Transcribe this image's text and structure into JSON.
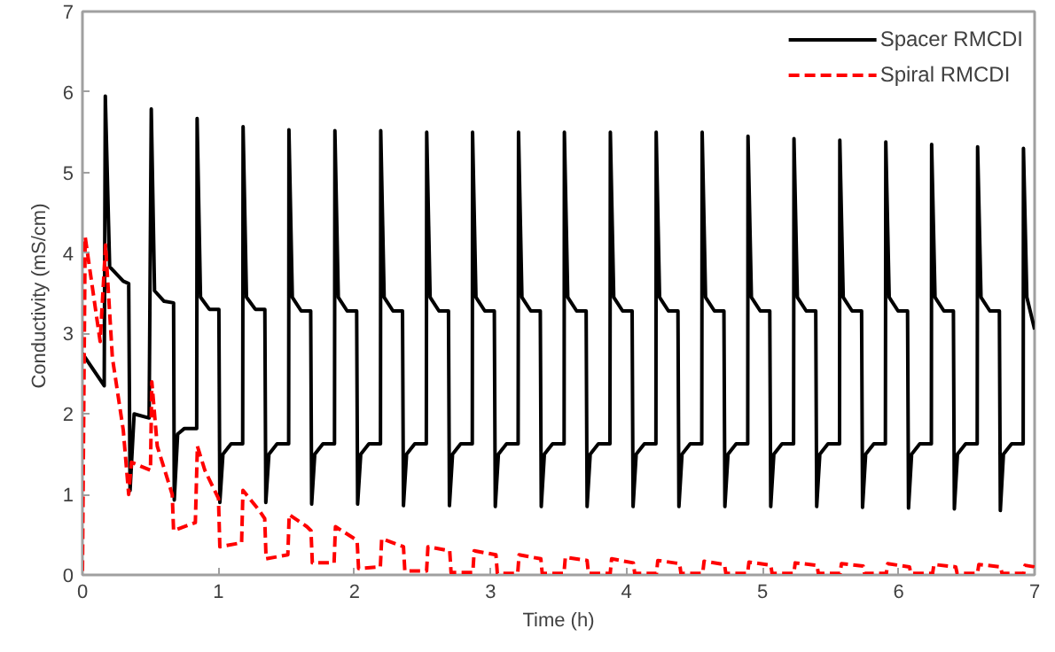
{
  "chart_data": {
    "type": "line",
    "xlabel": "Time (h)",
    "ylabel": "Conductivity  (mS/cm)",
    "xlim": [
      0,
      7
    ],
    "ylim": [
      0,
      7
    ],
    "xticks": [
      0,
      1,
      2,
      3,
      4,
      5,
      6,
      7
    ],
    "yticks": [
      0,
      1,
      2,
      3,
      4,
      5,
      6,
      7
    ],
    "grid": false,
    "legend": "top right",
    "marker": "none",
    "series": [
      {
        "name": "Spacer RMCDI",
        "color": "#000000",
        "line_style": "solid",
        "x": [
          0,
          0.16,
          0.168,
          0.2,
          0.3,
          0.34,
          0.35,
          0.38,
          0.49,
          0.506,
          0.53,
          0.6,
          0.67,
          0.675,
          0.7,
          0.75,
          0.84,
          0.843,
          0.868,
          0.933,
          1.003,
          1.01,
          1.033,
          1.093,
          1.178,
          1.181,
          1.206,
          1.271,
          1.341,
          1.348,
          1.371,
          1.431,
          1.516,
          1.518,
          1.543,
          1.608,
          1.678,
          1.685,
          1.708,
          1.768,
          1.853,
          1.856,
          1.881,
          1.946,
          2.016,
          2.023,
          2.046,
          2.106,
          2.191,
          2.193,
          2.218,
          2.283,
          2.353,
          2.36,
          2.383,
          2.443,
          2.528,
          2.531,
          2.556,
          2.621,
          2.691,
          2.698,
          2.721,
          2.781,
          2.866,
          2.868,
          2.893,
          2.958,
          3.028,
          3.035,
          3.058,
          3.118,
          3.203,
          3.206,
          3.231,
          3.296,
          3.366,
          3.373,
          3.396,
          3.456,
          3.541,
          3.543,
          3.568,
          3.633,
          3.703,
          3.71,
          3.733,
          3.793,
          3.878,
          3.881,
          3.906,
          3.971,
          4.041,
          4.048,
          4.071,
          4.131,
          4.216,
          4.218,
          4.243,
          4.308,
          4.378,
          4.385,
          4.408,
          4.468,
          4.553,
          4.556,
          4.581,
          4.646,
          4.716,
          4.723,
          4.746,
          4.806,
          4.891,
          4.893,
          4.918,
          4.983,
          5.053,
          5.06,
          5.083,
          5.143,
          5.228,
          5.231,
          5.256,
          5.321,
          5.391,
          5.398,
          5.421,
          5.481,
          5.566,
          5.568,
          5.593,
          5.658,
          5.728,
          5.735,
          5.758,
          5.818,
          5.903,
          5.906,
          5.931,
          5.996,
          6.066,
          6.073,
          6.096,
          6.156,
          6.241,
          6.243,
          6.268,
          6.333,
          6.403,
          6.41,
          6.433,
          6.493,
          6.578,
          6.581,
          6.606,
          6.671,
          6.741,
          6.748,
          6.771,
          6.831,
          6.916,
          6.918,
          6.943,
          7.0
        ],
        "values": [
          2.75,
          2.35,
          5.95,
          3.83,
          3.65,
          3.62,
          1.05,
          2.0,
          1.95,
          5.79,
          3.53,
          3.4,
          3.38,
          0.93,
          1.75,
          1.82,
          1.82,
          5.67,
          3.45,
          3.3,
          3.3,
          0.9,
          1.5,
          1.63,
          1.63,
          5.57,
          3.45,
          3.3,
          3.3,
          0.9,
          1.5,
          1.63,
          1.63,
          5.53,
          3.45,
          3.28,
          3.28,
          0.88,
          1.5,
          1.63,
          1.63,
          5.52,
          3.45,
          3.28,
          3.28,
          0.88,
          1.5,
          1.63,
          1.63,
          5.52,
          3.45,
          3.28,
          3.28,
          0.86,
          1.5,
          1.63,
          1.63,
          5.5,
          3.45,
          3.28,
          3.28,
          0.86,
          1.5,
          1.63,
          1.63,
          5.5,
          3.45,
          3.28,
          3.28,
          0.85,
          1.5,
          1.63,
          1.63,
          5.5,
          3.45,
          3.28,
          3.28,
          0.85,
          1.5,
          1.63,
          1.63,
          5.5,
          3.45,
          3.28,
          3.28,
          0.85,
          1.5,
          1.63,
          1.63,
          5.5,
          3.45,
          3.28,
          3.28,
          0.85,
          1.5,
          1.63,
          1.63,
          5.5,
          3.45,
          3.28,
          3.28,
          0.85,
          1.5,
          1.63,
          1.63,
          5.5,
          3.45,
          3.28,
          3.28,
          0.85,
          1.5,
          1.63,
          1.63,
          5.45,
          3.45,
          3.28,
          3.28,
          0.85,
          1.5,
          1.63,
          1.63,
          5.42,
          3.45,
          3.28,
          3.28,
          0.85,
          1.5,
          1.63,
          1.63,
          5.4,
          3.45,
          3.28,
          3.28,
          0.84,
          1.5,
          1.63,
          1.63,
          5.38,
          3.45,
          3.28,
          3.28,
          0.83,
          1.5,
          1.63,
          1.63,
          5.35,
          3.45,
          3.28,
          3.28,
          0.82,
          1.5,
          1.63,
          1.63,
          5.32,
          3.45,
          3.28,
          3.28,
          0.8,
          1.5,
          1.63,
          1.63,
          5.3,
          3.45,
          3.05
        ]
      },
      {
        "name": "Spiral RMCDI",
        "color": "#ff0000",
        "line_style": "dashed",
        "x": [
          0,
          0.02,
          0.13,
          0.17,
          0.22,
          0.3,
          0.34,
          0.36,
          0.5,
          0.51,
          0.55,
          0.66,
          0.67,
          0.83,
          0.845,
          0.9,
          1.0,
          1.01,
          1.17,
          1.18,
          1.3,
          1.34,
          1.35,
          1.51,
          1.52,
          1.65,
          1.68,
          1.69,
          1.85,
          1.86,
          2.0,
          2.02,
          2.03,
          2.19,
          2.2,
          2.36,
          2.37,
          2.53,
          2.54,
          2.7,
          2.71,
          2.87,
          2.88,
          3.04,
          3.05,
          3.2,
          3.21,
          3.37,
          3.38,
          3.54,
          3.55,
          3.71,
          3.72,
          3.88,
          3.89,
          4.05,
          4.06,
          4.22,
          4.23,
          4.39,
          4.4,
          4.56,
          4.57,
          4.72,
          4.73,
          4.89,
          4.9,
          5.06,
          5.07,
          5.23,
          5.24,
          5.4,
          5.41,
          5.57,
          5.58,
          5.74,
          5.75,
          5.91,
          5.92,
          6.08,
          6.09,
          6.25,
          6.26,
          6.42,
          6.43,
          6.58,
          6.59,
          6.75,
          6.76,
          6.92,
          6.93,
          7.0
        ],
        "values": [
          0.05,
          4.2,
          2.9,
          4.1,
          2.7,
          1.8,
          1.0,
          1.4,
          1.3,
          2.4,
          1.6,
          1.0,
          0.55,
          0.65,
          1.6,
          1.3,
          0.95,
          0.35,
          0.4,
          1.05,
          0.8,
          0.7,
          0.2,
          0.25,
          0.75,
          0.6,
          0.55,
          0.15,
          0.15,
          0.6,
          0.45,
          0.4,
          0.08,
          0.1,
          0.45,
          0.35,
          0.05,
          0.05,
          0.35,
          0.3,
          0.03,
          0.03,
          0.3,
          0.25,
          0.02,
          0.02,
          0.25,
          0.2,
          0.02,
          0.02,
          0.22,
          0.18,
          0.02,
          0.02,
          0.2,
          0.15,
          0.02,
          0.02,
          0.18,
          0.14,
          0.02,
          0.02,
          0.17,
          0.13,
          0.02,
          0.02,
          0.16,
          0.12,
          0.02,
          0.02,
          0.15,
          0.12,
          0.02,
          0.02,
          0.14,
          0.11,
          0.02,
          0.02,
          0.14,
          0.1,
          0.02,
          0.02,
          0.13,
          0.1,
          0.02,
          0.02,
          0.13,
          0.1,
          0.02,
          0.02,
          0.12,
          0.1
        ]
      }
    ]
  }
}
